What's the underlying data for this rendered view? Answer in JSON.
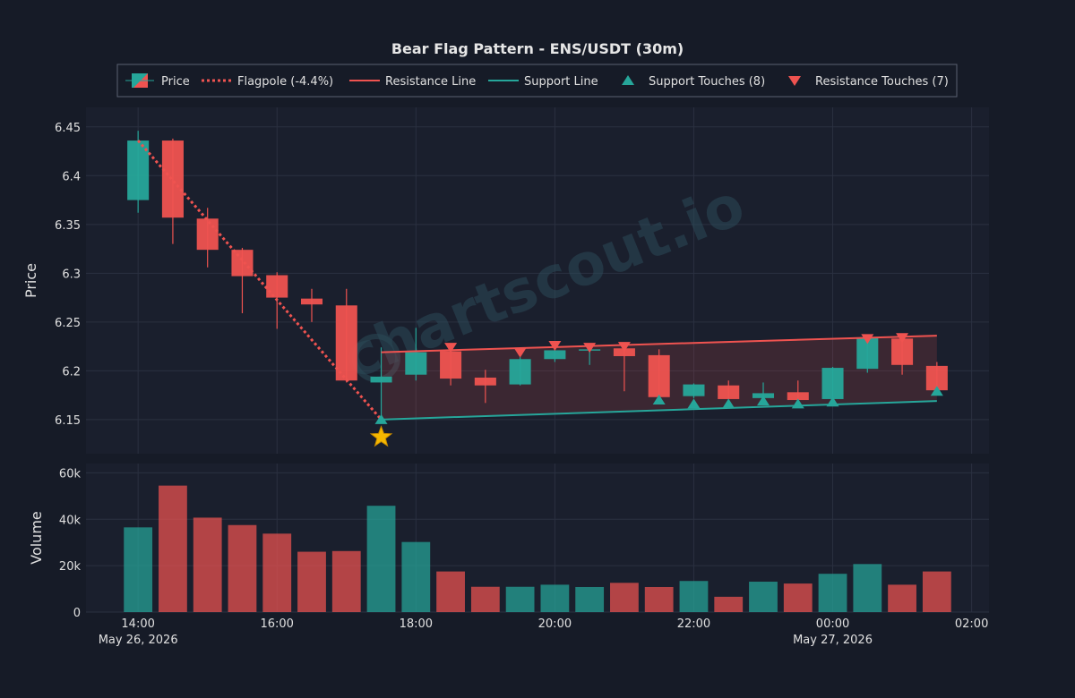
{
  "chart_data": {
    "type": "candlestick",
    "title": "Bear Flag Pattern - ENS/USDT (30m)",
    "watermark": "chartscout.io",
    "price_panel": {
      "ylabel": "Price",
      "ylim": [
        6.115,
        6.47
      ],
      "yticks": [
        6.15,
        6.2,
        6.25,
        6.3,
        6.35,
        6.4,
        6.45
      ],
      "ytick_labels": [
        "6.15",
        "6.2",
        "6.25",
        "6.3",
        "6.35",
        "6.4",
        "6.45"
      ]
    },
    "volume_panel": {
      "ylabel": "Volume",
      "ylim": [
        0,
        64000
      ],
      "yticks": [
        0,
        20000,
        40000,
        60000
      ],
      "ytick_labels": [
        "0",
        "20k",
        "40k",
        "60k"
      ]
    },
    "x_axis": {
      "range_minutes": [
        -45,
        735
      ],
      "ticks_minutes": [
        0,
        120,
        240,
        360,
        480,
        600,
        720
      ],
      "tick_labels": [
        "14:00",
        "16:00",
        "18:00",
        "20:00",
        "22:00",
        "00:00",
        "02:00"
      ],
      "date_labels": [
        {
          "at_minutes": 0,
          "text": "May 26, 2026"
        },
        {
          "at_minutes": 600,
          "text": "May 27, 2026"
        }
      ]
    },
    "candles_time_start": "2026-05-26 14:00",
    "candle_interval_minutes": 30,
    "candles": [
      {
        "o": 6.375,
        "h": 6.446,
        "l": 6.362,
        "c": 6.436,
        "v": 36500
      },
      {
        "o": 6.436,
        "h": 6.438,
        "l": 6.33,
        "c": 6.357,
        "v": 54500
      },
      {
        "o": 6.356,
        "h": 6.367,
        "l": 6.306,
        "c": 6.324,
        "v": 40700
      },
      {
        "o": 6.324,
        "h": 6.326,
        "l": 6.259,
        "c": 6.297,
        "v": 37500
      },
      {
        "o": 6.298,
        "h": 6.301,
        "l": 6.243,
        "c": 6.275,
        "v": 33800
      },
      {
        "o": 6.274,
        "h": 6.284,
        "l": 6.25,
        "c": 6.268,
        "v": 26000
      },
      {
        "o": 6.267,
        "h": 6.284,
        "l": 6.188,
        "c": 6.19,
        "v": 26300
      },
      {
        "o": 6.188,
        "h": 6.224,
        "l": 6.15,
        "c": 6.194,
        "v": 45800
      },
      {
        "o": 6.196,
        "h": 6.244,
        "l": 6.19,
        "c": 6.219,
        "v": 30200
      },
      {
        "o": 6.22,
        "h": 6.224,
        "l": 6.185,
        "c": 6.192,
        "v": 17500
      },
      {
        "o": 6.193,
        "h": 6.201,
        "l": 6.167,
        "c": 6.185,
        "v": 10900
      },
      {
        "o": 6.186,
        "h": 6.214,
        "l": 6.185,
        "c": 6.212,
        "v": 10900
      },
      {
        "o": 6.212,
        "h": 6.224,
        "l": 6.209,
        "c": 6.221,
        "v": 11800
      },
      {
        "o": 6.221,
        "h": 6.225,
        "l": 6.206,
        "c": 6.222,
        "v": 10800
      },
      {
        "o": 6.223,
        "h": 6.227,
        "l": 6.179,
        "c": 6.215,
        "v": 12600
      },
      {
        "o": 6.216,
        "h": 6.222,
        "l": 6.172,
        "c": 6.173,
        "v": 10800
      },
      {
        "o": 6.174,
        "h": 6.187,
        "l": 6.172,
        "c": 6.186,
        "v": 13400
      },
      {
        "o": 6.185,
        "h": 6.19,
        "l": 6.171,
        "c": 6.171,
        "v": 6600
      },
      {
        "o": 6.172,
        "h": 6.188,
        "l": 6.17,
        "c": 6.177,
        "v": 13100
      },
      {
        "o": 6.178,
        "h": 6.19,
        "l": 6.169,
        "c": 6.17,
        "v": 12300
      },
      {
        "o": 6.171,
        "h": 6.204,
        "l": 6.169,
        "c": 6.203,
        "v": 16500
      },
      {
        "o": 6.202,
        "h": 6.236,
        "l": 6.198,
        "c": 6.234,
        "v": 20700
      },
      {
        "o": 6.233,
        "h": 6.236,
        "l": 6.196,
        "c": 6.206,
        "v": 11800
      },
      {
        "o": 6.205,
        "h": 6.209,
        "l": 6.18,
        "c": 6.18,
        "v": 17500
      }
    ],
    "flagpole": {
      "start_index": 0,
      "start_price": 6.436,
      "end_index": 7,
      "end_price": 6.15
    },
    "resistance_line": {
      "start_index": 7,
      "start_price": 6.219,
      "end_index": 23,
      "end_price": 6.236
    },
    "support_line": {
      "start_index": 7,
      "start_price": 6.15,
      "end_index": 23,
      "end_price": 6.169
    },
    "support_touches": [
      {
        "index": 7,
        "price": 6.15
      },
      {
        "index": 15,
        "price": 6.17
      },
      {
        "index": 16,
        "price": 6.166
      },
      {
        "index": 17,
        "price": 6.166
      },
      {
        "index": 18,
        "price": 6.169
      },
      {
        "index": 19,
        "price": 6.166
      },
      {
        "index": 20,
        "price": 6.168
      },
      {
        "index": 23,
        "price": 6.179
      }
    ],
    "resistance_touches": [
      {
        "index": 9,
        "price": 6.224
      },
      {
        "index": 11,
        "price": 6.219
      },
      {
        "index": 12,
        "price": 6.226
      },
      {
        "index": 13,
        "price": 6.224
      },
      {
        "index": 14,
        "price": 6.225
      },
      {
        "index": 21,
        "price": 6.233
      },
      {
        "index": 22,
        "price": 6.234
      }
    ],
    "first_support_marker": {
      "index": 7,
      "price": 6.132
    },
    "legend": {
      "placement": "top-center",
      "entries": [
        {
          "key": "price",
          "label": "Price"
        },
        {
          "key": "flagpole",
          "label": "Flagpole (-4.4%)"
        },
        {
          "key": "resistance",
          "label": "Resistance Line"
        },
        {
          "key": "support",
          "label": "Support Line"
        },
        {
          "key": "support_touch",
          "label": "Support Touches (8)"
        },
        {
          "key": "resistance_touch",
          "label": "Resistance Touches (7)"
        }
      ]
    },
    "colors": {
      "up": "#26a69a",
      "down": "#ef5350",
      "flagpole": "#ef5350",
      "resistance": "#ef5350",
      "support": "#26a69a",
      "star": "#f5b800",
      "background": "#161b27",
      "panel": "#1a1f2d",
      "grid": "#2a3040"
    }
  }
}
